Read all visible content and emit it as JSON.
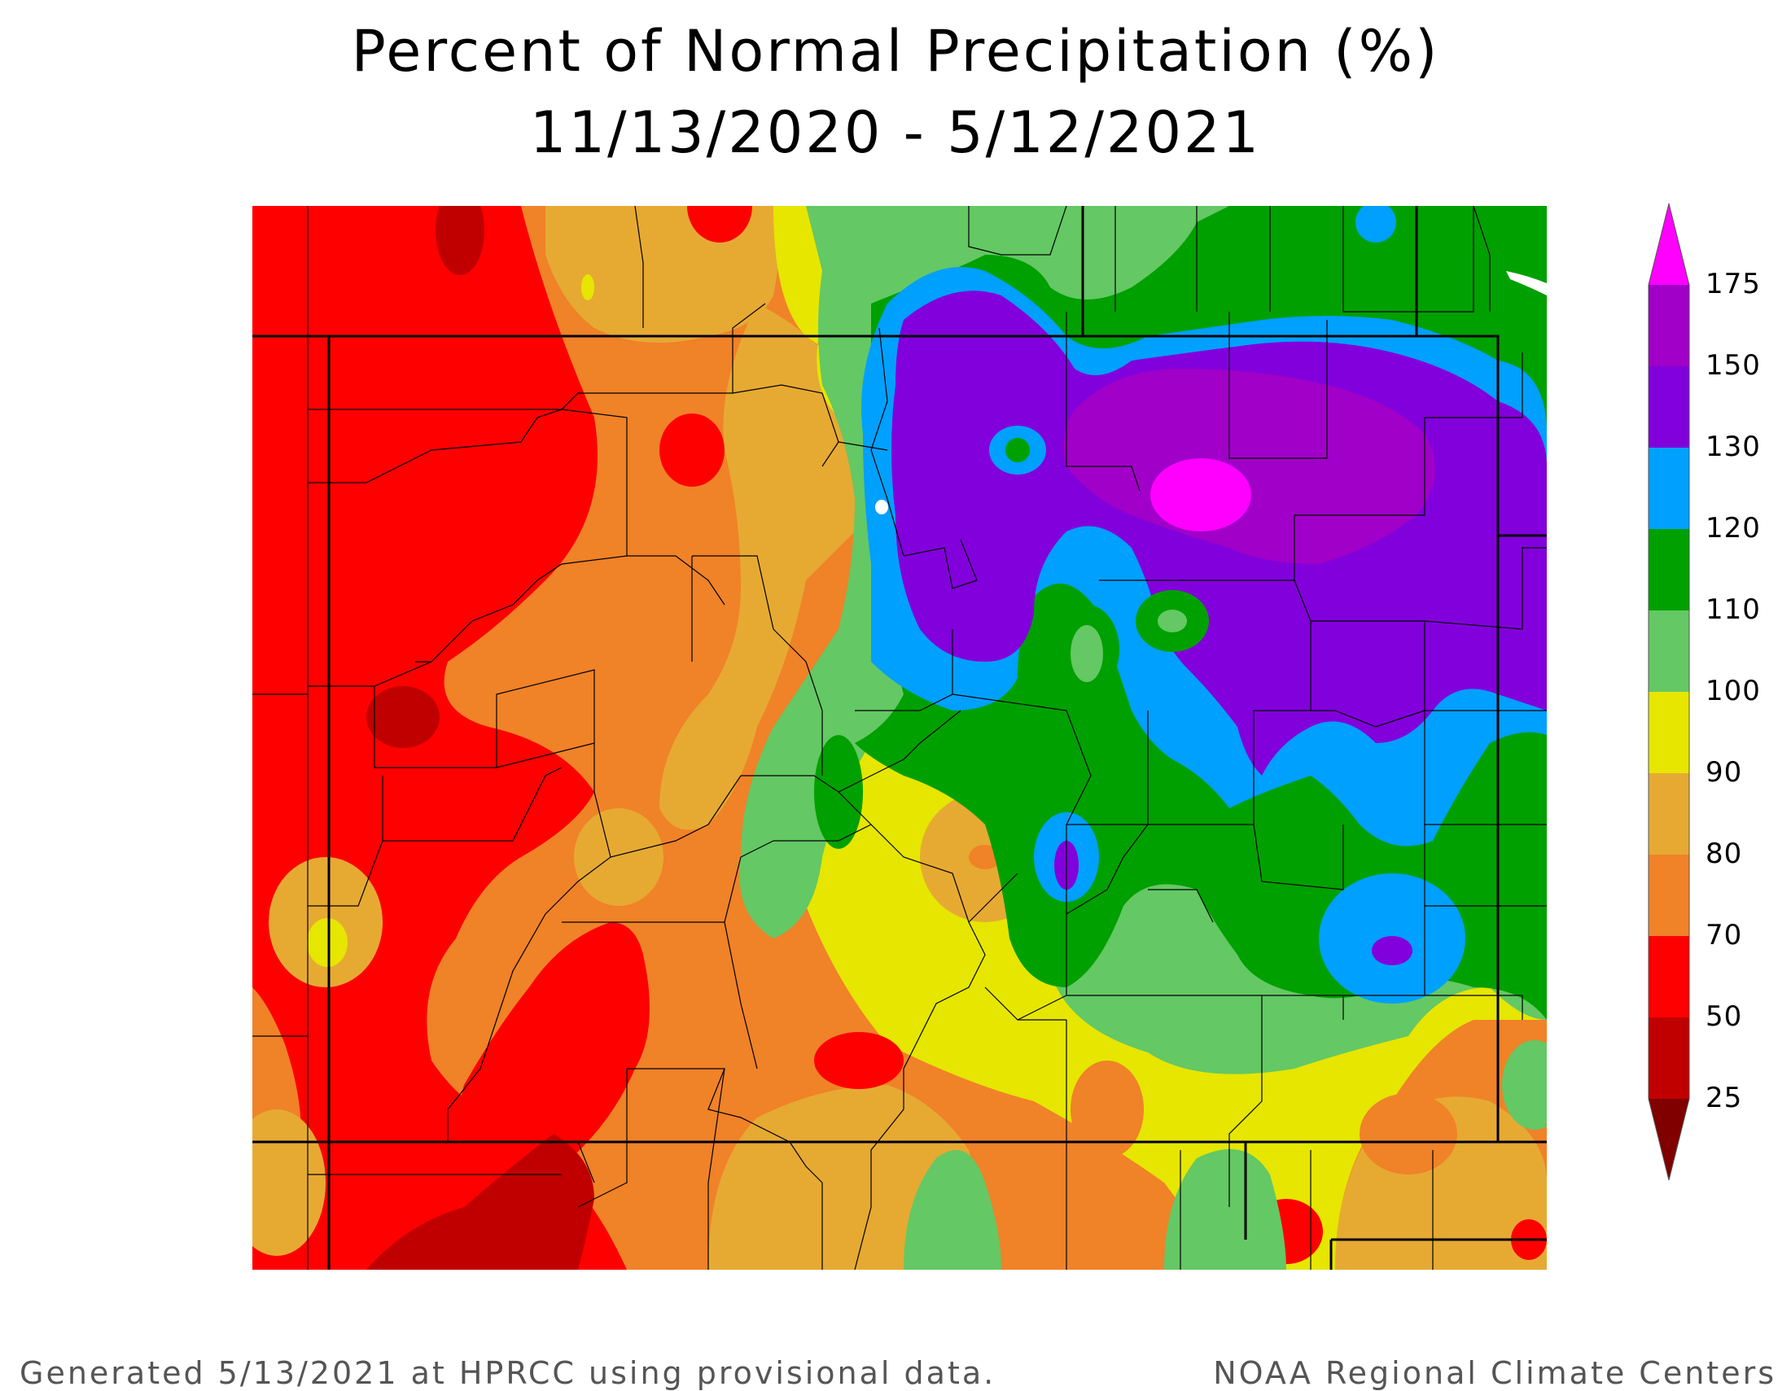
{
  "title": {
    "line1": "Percent of Normal Precipitation (%)",
    "line2": "11/13/2020 - 5/12/2021"
  },
  "legend": {
    "levels": [
      {
        "label": "175",
        "color": "#ff00ff"
      },
      {
        "label": "150",
        "color": "#a000c8"
      },
      {
        "label": "130",
        "color": "#8200dc"
      },
      {
        "label": "120",
        "color": "#00a0ff"
      },
      {
        "label": "110",
        "color": "#00a000"
      },
      {
        "label": "100",
        "color": "#64c864"
      },
      {
        "label": "90",
        "color": "#e6e600"
      },
      {
        "label": "80",
        "color": "#e6aa32"
      },
      {
        "label": "70",
        "color": "#f08228"
      },
      {
        "label": "50",
        "color": "#ff0000"
      },
      {
        "label": "25",
        "color": "#c00000"
      }
    ],
    "below_min_color": "#800000"
  },
  "footer": {
    "left": "Generated 5/13/2021 at HPRCC using provisional data.",
    "right": "NOAA Regional Climate Centers"
  }
}
